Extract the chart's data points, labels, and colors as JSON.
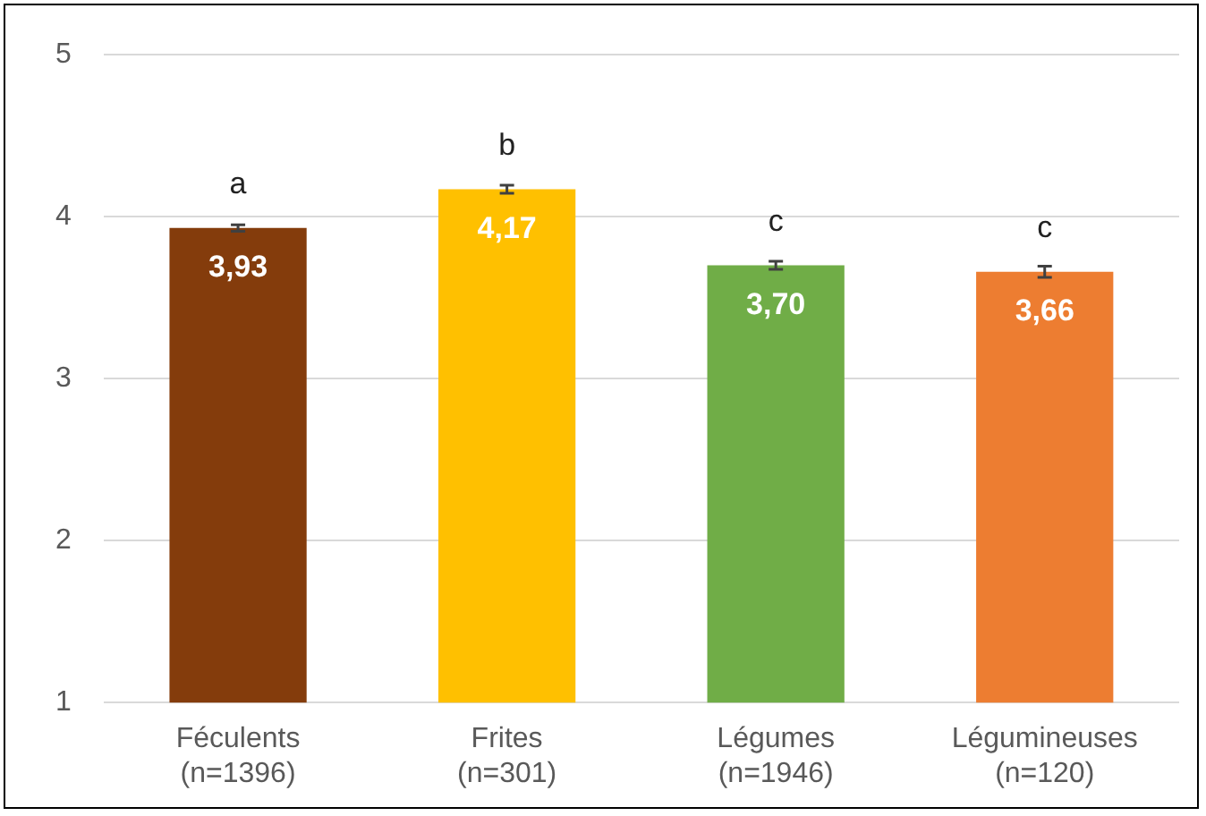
{
  "chart_data": {
    "type": "bar",
    "categories": [
      "Féculents\n(n=1396)",
      "Frites\n(n=301)",
      "Légumes\n(n=1946)",
      "Légumineuses\n(n=120)"
    ],
    "values": [
      3.93,
      4.17,
      3.7,
      3.66
    ],
    "colors": [
      "#843c0c",
      "#ffc000",
      "#70ad47",
      "#ed7d31"
    ],
    "errors": [
      0.02,
      0.025,
      0.025,
      0.035
    ],
    "value_labels": [
      "3,93",
      "4,17",
      "3,70",
      "3,66"
    ],
    "ylim": [
      1,
      5
    ],
    "yticks": [
      1,
      2,
      3,
      4,
      5
    ],
    "grid": "y",
    "legend": false,
    "annotations": [
      {
        "text": "a",
        "x": "Féculents\n(n=1396)",
        "y": 3.93
      },
      {
        "text": "b",
        "x": "Frites\n(n=301)",
        "y": 4.17
      },
      {
        "text": "c",
        "x": "Légumes\n(n=1946)",
        "y": 3.7
      },
      {
        "text": "c",
        "x": "Légumineuses\n(n=120)",
        "y": 3.66
      }
    ]
  }
}
